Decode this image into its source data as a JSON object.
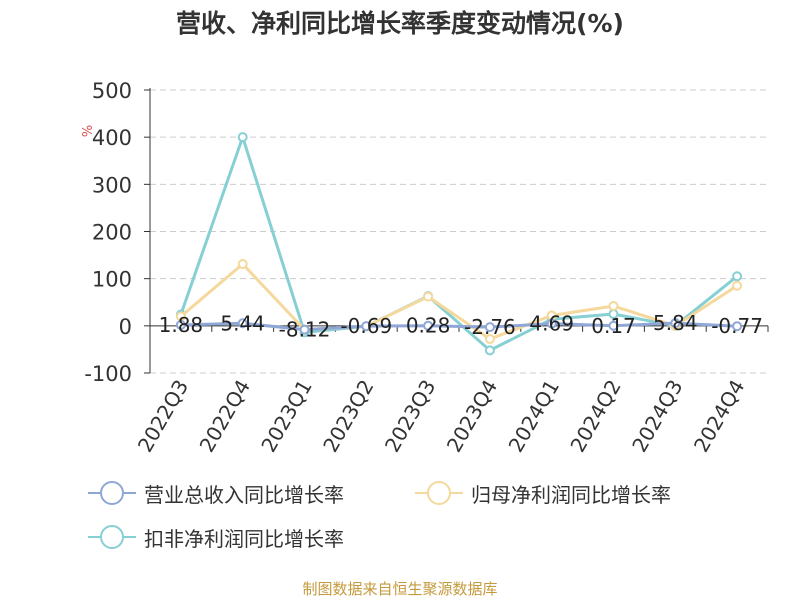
{
  "title": "营收、净利同比增长率季度变动情况(%)",
  "source": "制图数据来自恒生聚源数据库",
  "chart_data": {
    "type": "line",
    "ylabel": "%",
    "ylim": [
      -100,
      500
    ],
    "yticks": [
      -100,
      0,
      100,
      200,
      300,
      400,
      500
    ],
    "grid": true,
    "legend_position": "bottom",
    "categories": [
      "2022Q3",
      "2022Q4",
      "2023Q1",
      "2023Q2",
      "2023Q3",
      "2023Q4",
      "2024Q1",
      "2024Q2",
      "2024Q3",
      "2024Q4"
    ],
    "series": [
      {
        "name": "营业总收入同比增长率",
        "color": "#8ea7d6",
        "values": [
          1.88,
          5.44,
          -8.12,
          -0.69,
          0.28,
          -2.76,
          4.69,
          0.17,
          5.84,
          -0.77
        ],
        "labels": [
          "1.88",
          "5.44",
          "-8.12",
          "-0.69",
          "0.28",
          "-2.76",
          "4.69",
          "0.17",
          "5.84",
          "-0.77"
        ]
      },
      {
        "name": "归母净利润同比增长率",
        "color": "#f5d89c",
        "values": [
          20,
          131,
          -8,
          -1,
          62,
          -28,
          22,
          42,
          0,
          85
        ]
      },
      {
        "name": "扣非净利润同比增长率",
        "color": "#86cfd3",
        "values": [
          24,
          400,
          -14,
          -1,
          63,
          -52,
          14,
          25,
          0,
          105
        ]
      }
    ]
  }
}
